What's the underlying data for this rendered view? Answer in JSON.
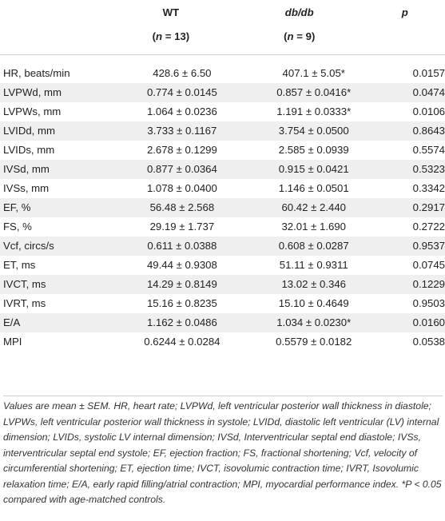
{
  "header": {
    "col_label": "",
    "wt": "WT",
    "wt_n": "(n = 13)",
    "db": "db/db",
    "db_n": "(n = 9)",
    "p": "p"
  },
  "rows": [
    {
      "label": "HR, beats/min",
      "wt": "428.6 ± 6.50",
      "db": "407.1 ± 5.05*",
      "p": "0.0157"
    },
    {
      "label": "LVPWd, mm",
      "wt": "0.774 ± 0.0145",
      "db": "0.857 ± 0.0416*",
      "p": "0.0474"
    },
    {
      "label": "LVPWs, mm",
      "wt": "1.064 ± 0.0236",
      "db": "1.191 ± 0.0333*",
      "p": "0.0106"
    },
    {
      "label": "LVIDd, mm",
      "wt": "3.733 ± 0.1167",
      "db": "3.754 ± 0.0500",
      "p": "0.8643"
    },
    {
      "label": "LVIDs, mm",
      "wt": "2.678 ± 0.1299",
      "db": "2.585 ± 0.0939",
      "p": "0.5574"
    },
    {
      "label": "IVSd, mm",
      "wt": "0.877 ± 0.0364",
      "db": "0.915 ± 0.0421",
      "p": "0.5323"
    },
    {
      "label": "IVSs, mm",
      "wt": "1.078 ± 0.0400",
      "db": "1.146 ± 0.0501",
      "p": "0.3342"
    },
    {
      "label": "EF, %",
      "wt": "56.48 ± 2.568",
      "db": "60.42 ± 2.440",
      "p": "0.2917"
    },
    {
      "label": "FS, %",
      "wt": "29.19 ± 1.737",
      "db": "32.01 ± 1.690",
      "p": "0.2722"
    },
    {
      "label": "Vcf, circs/s",
      "wt": "0.611 ± 0.0388",
      "db": "0.608 ± 0.0287",
      "p": "0.9537"
    },
    {
      "label": "ET, ms",
      "wt": "49.44 ± 0.9308",
      "db": "51.11 ± 0.9311",
      "p": "0.0745"
    },
    {
      "label": "IVCT, ms",
      "wt": "14.29 ± 0.8149",
      "db": "13.02 ± 0.346",
      "p": "0.1229"
    },
    {
      "label": "IVRT, ms",
      "wt": "15.16 ± 0.8235",
      "db": "15.10 ± 0.4649",
      "p": "0.9503"
    },
    {
      "label": "E/A",
      "wt": "1.162 ± 0.0486",
      "db": "1.034 ± 0.0230*",
      "p": "0.0160"
    },
    {
      "label": "MPI",
      "wt": "0.6244 ± 0.0284",
      "db": "0.5579 ± 0.0182",
      "p": "0.0538"
    }
  ],
  "caption": "Values are mean ± SEM. HR, heart rate; LVPWd, left ventricular posterior wall thickness in diastole; LVPWs, left ventricular posterior wall thickness in systole; LVIDd, diastolic left ventricular (LV) internal dimension; LVIDs, systolic LV internal dimension; IVSd, Interventricular septal end diastole; IVSs, interventricular septal end systole; EF, ejection fraction; FS, fractional shortening; Vcf, velocity of circumferential shortening; ET, ejection time; IVCT, isovolumic contraction time; IVRT, Isovolumic relaxation time; E/A, early rapid filling/atrial contraction; MPI, myocardial performance index. *P < 0.05 compared with age-matched controls."
}
